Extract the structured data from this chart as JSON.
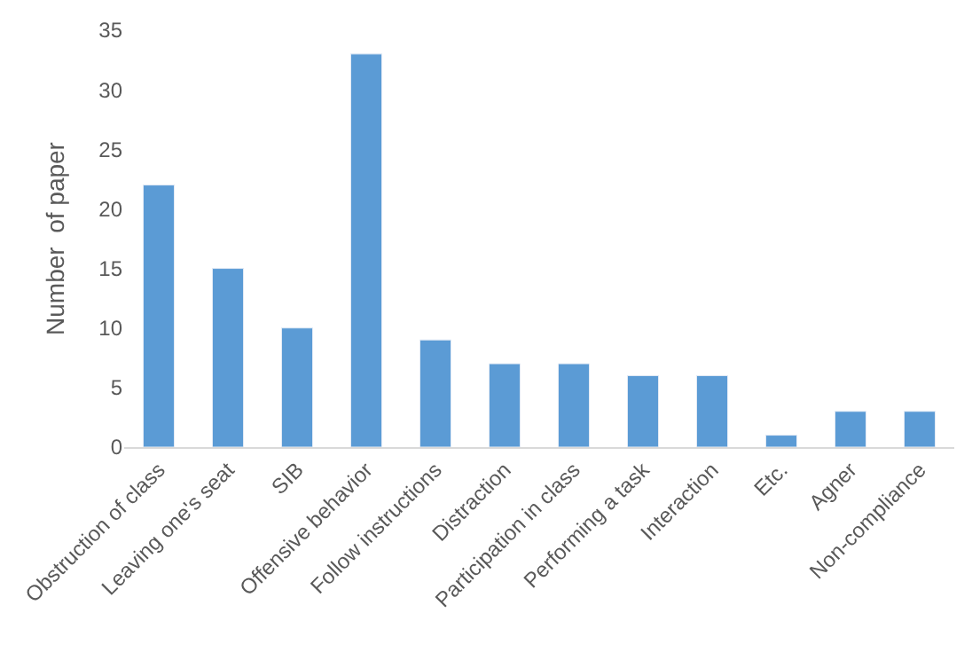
{
  "chart_data": {
    "type": "bar",
    "ylabel": "Number  of paper",
    "categories": [
      "Obstruction of class",
      "Leaving one's seat",
      "SIB",
      "Offensive behavior",
      "Follow instructions",
      "Distraction",
      "Participation in class",
      "Performing a task",
      "Interaction",
      "Etc.",
      "Agner",
      "Non-compliance"
    ],
    "values": [
      22,
      15,
      10,
      33,
      9,
      7,
      7,
      6,
      6,
      1,
      3,
      3
    ],
    "color": "#5b9bd5",
    "ylim": [
      0,
      35
    ],
    "yticks": [
      0,
      5,
      10,
      15,
      20,
      25,
      30,
      35
    ],
    "grid": false,
    "legend": false
  }
}
